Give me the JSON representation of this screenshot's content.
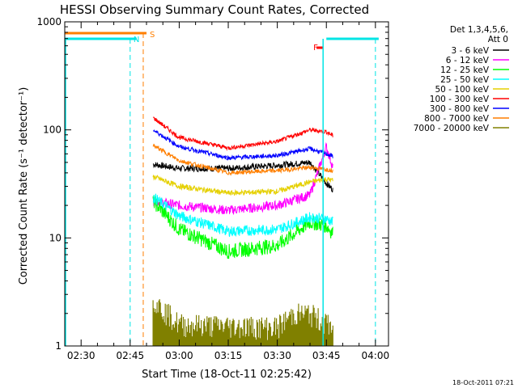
{
  "chart_data": {
    "type": "line",
    "title": "HESSI Observing Summary Count Rates, Corrected",
    "xlabel": "Start Time (18-Oct-11 02:25:42)",
    "ylabel": "Corrected Count Rate (s⁻¹ detector⁻¹)",
    "timestamp": "18-Oct-2011 07:21",
    "ylim": [
      1,
      1000
    ],
    "yscale": "log",
    "xlim": [
      "02:25",
      "04:04"
    ],
    "x_ticks": [
      "02:30",
      "02:45",
      "03:00",
      "03:15",
      "03:30",
      "03:45",
      "04:00"
    ],
    "y_ticks": [
      "1",
      "10",
      "100",
      "1000"
    ],
    "legend": {
      "title_lines": [
        "Det 1,3,4,5,6,",
        "Att 0"
      ],
      "placement": "right"
    },
    "colors": {
      "axes": "#000000",
      "night": "#00e5e5",
      "saa": "#ff7f00",
      "flare": "#ff0000"
    },
    "markers": [
      {
        "name": "S",
        "label": "S",
        "color": "#ff7f00"
      },
      {
        "name": "N",
        "label": "N",
        "color": "#00e5e5"
      },
      {
        "name": "F",
        "label": "F",
        "color": "#ff0000"
      }
    ],
    "series": [
      {
        "name": "3 - 6 keV",
        "color": "#000000",
        "x": [
          "02:52",
          "03:00",
          "03:15",
          "03:30",
          "03:40",
          "03:45",
          "03:47"
        ],
        "values": [
          48,
          44,
          44,
          47,
          50,
          32,
          28
        ]
      },
      {
        "name": "6 - 12 keV",
        "color": "#ff00ff",
        "x": [
          "02:52",
          "03:00",
          "03:15",
          "03:30",
          "03:40",
          "03:45",
          "03:47"
        ],
        "values": [
          22,
          20,
          18,
          20,
          25,
          70,
          45
        ]
      },
      {
        "name": "12 - 25 keV",
        "color": "#00ff00",
        "x": [
          "02:52",
          "03:00",
          "03:15",
          "03:30",
          "03:40",
          "03:45",
          "03:47"
        ],
        "values": [
          22,
          12,
          7.5,
          8.5,
          14,
          13,
          11
        ]
      },
      {
        "name": "25 - 50 keV",
        "color": "#00ffff",
        "x": [
          "02:52",
          "03:00",
          "03:15",
          "03:30",
          "03:40",
          "03:45",
          "03:47"
        ],
        "values": [
          24,
          16,
          11.5,
          12,
          15.5,
          15,
          14
        ]
      },
      {
        "name": "50 - 100 keV",
        "color": "#e5d000",
        "x": [
          "02:52",
          "03:00",
          "03:15",
          "03:30",
          "03:40",
          "03:45",
          "03:47"
        ],
        "values": [
          37,
          30,
          26,
          27,
          33,
          35,
          34
        ]
      },
      {
        "name": "100 - 300 keV",
        "color": "#ff0000",
        "x": [
          "02:52",
          "03:00",
          "03:15",
          "03:30",
          "03:40",
          "03:45",
          "03:47"
        ],
        "values": [
          130,
          85,
          68,
          78,
          100,
          96,
          88
        ]
      },
      {
        "name": "300 - 800 keV",
        "color": "#0000ff",
        "x": [
          "02:52",
          "03:00",
          "03:15",
          "03:30",
          "03:40",
          "03:45",
          "03:47"
        ],
        "values": [
          100,
          70,
          55,
          58,
          67,
          60,
          57
        ]
      },
      {
        "name": "800 - 7000 keV",
        "color": "#ff7f00",
        "x": [
          "02:52",
          "03:00",
          "03:15",
          "03:30",
          "03:40",
          "03:45",
          "03:47"
        ],
        "values": [
          72,
          52,
          40,
          42,
          45,
          43,
          42
        ]
      },
      {
        "name": "7000 - 20000 keV",
        "color": "#808000",
        "x": [
          "02:52",
          "02:53",
          "03:00",
          "03:30",
          "03:35",
          "03:40",
          "03:47"
        ],
        "values": [
          3,
          2.5,
          1.6,
          1.5,
          2.0,
          2.0,
          1.5
        ]
      }
    ]
  }
}
